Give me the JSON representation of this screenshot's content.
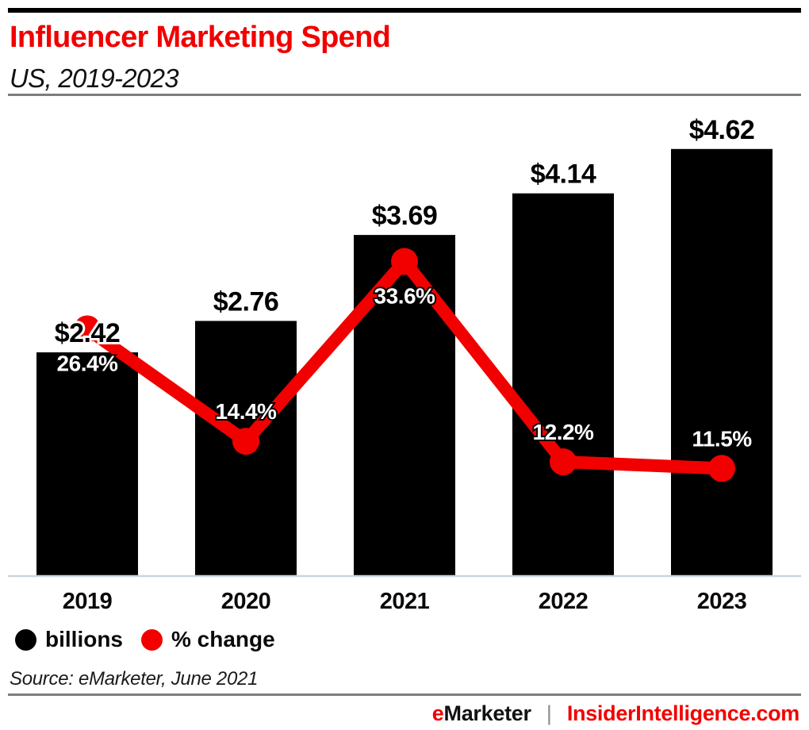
{
  "header": {
    "title": "Influencer Marketing Spend",
    "subtitle": "US, 2019-2023"
  },
  "legend": {
    "items": [
      {
        "label": "billions",
        "color": "#000000"
      },
      {
        "label": "% change",
        "color": "#f20000"
      }
    ]
  },
  "source_note": "Source: eMarketer, June 2021",
  "footer": {
    "brand_accent": "e",
    "brand_rest": "Marketer",
    "separator": "|",
    "site": "InsiderIntelligence.com"
  },
  "colors": {
    "accent_red": "#f20000",
    "bar_black": "#000000",
    "axis_line": "#ccd5de",
    "divider_gray": "#7d7d7d",
    "pct_label_text": "#ffffff"
  },
  "chart_data": {
    "type": "combo-bar-line",
    "title": "Influencer Marketing Spend",
    "subtitle": "US, 2019-2023",
    "categories": [
      "2019",
      "2020",
      "2021",
      "2022",
      "2023"
    ],
    "series": [
      {
        "name": "billions",
        "type": "bar",
        "color": "#000000",
        "values": [
          2.42,
          2.76,
          3.69,
          4.14,
          4.62
        ],
        "labels": [
          "$2.42",
          "$2.76",
          "$3.69",
          "$4.14",
          "$4.62"
        ]
      },
      {
        "name": "% change",
        "type": "line",
        "color": "#f20000",
        "values": [
          26.4,
          14.4,
          33.6,
          12.2,
          11.5
        ],
        "labels": [
          "26.4%",
          "14.4%",
          "33.6%",
          "12.2%",
          "11.5%"
        ],
        "label_side": [
          "below",
          "above",
          "below",
          "above",
          "above"
        ]
      }
    ],
    "xlabel": "",
    "ylabel": "",
    "axes": {
      "ylim_bars": [
        0,
        5.1
      ],
      "ylim_pct": [
        0,
        50
      ],
      "gridlines": false,
      "baseline_axis_visible": true
    },
    "legend_position": "bottom-left"
  }
}
